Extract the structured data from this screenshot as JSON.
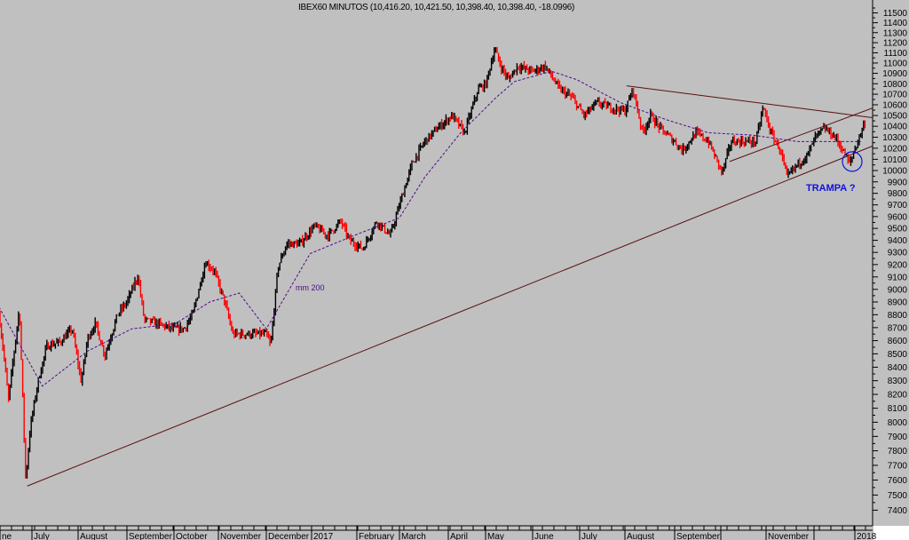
{
  "chart_data": {
    "type": "ohlc",
    "title": "IBEX60 MINUTOS (10,416.20, 10,421.50, 10,398.40, 10,398.40, -18.0996)",
    "y_scale": "log",
    "ylim": [
      7300,
      11600
    ],
    "y_ticks": [
      7400,
      7500,
      7600,
      7700,
      7800,
      7900,
      8000,
      8100,
      8200,
      8300,
      8400,
      8500,
      8600,
      8700,
      8800,
      8900,
      9000,
      9100,
      9200,
      9300,
      9400,
      9500,
      9600,
      9700,
      9800,
      9900,
      10000,
      10100,
      10200,
      10300,
      10400,
      10500,
      10600,
      10700,
      10800,
      10900,
      11000,
      11100,
      11200,
      11300,
      11400,
      11500
    ],
    "y_axis_side": "right",
    "x_tick_labels": [
      {
        "label": "ne",
        "date": "2016-06-01"
      },
      {
        "label": "July",
        "date": "2016-07-01"
      },
      {
        "label": "August",
        "date": "2016-08-01"
      },
      {
        "label": "September",
        "date": "2016-09-01"
      },
      {
        "label": "October",
        "date": "2016-10-01"
      },
      {
        "label": "November",
        "date": "2016-11-01"
      },
      {
        "label": "December",
        "date": "2016-12-01"
      },
      {
        "label": "2017",
        "date": "2017-01-01"
      },
      {
        "label": "February",
        "date": "2017-02-01"
      },
      {
        "label": "March",
        "date": "2017-03-01"
      },
      {
        "label": "April",
        "date": "2017-04-01"
      },
      {
        "label": "May",
        "date": "2017-05-01"
      },
      {
        "label": "June",
        "date": "2017-06-01"
      },
      {
        "label": "July",
        "date": "2017-07-01"
      },
      {
        "label": "August",
        "date": "2017-08-01"
      },
      {
        "label": "September",
        "date": "2017-09-01"
      },
      {
        "label": "",
        "date": "2017-10-01"
      },
      {
        "label": "November",
        "date": "2017-11-01"
      },
      {
        "label": "",
        "date": "2017-12-01"
      },
      {
        "label": "2018",
        "date": "2018-01-01"
      }
    ],
    "price": [
      [
        "2016-06-10",
        8800
      ],
      [
        "2016-06-13",
        8500
      ],
      [
        "2016-06-16",
        8160
      ],
      [
        "2016-06-23",
        8860
      ],
      [
        "2016-06-27",
        7600
      ],
      [
        "2016-06-30",
        7970
      ],
      [
        "2016-07-05",
        8290
      ],
      [
        "2016-07-11",
        8560
      ],
      [
        "2016-07-20",
        8590
      ],
      [
        "2016-07-28",
        8690
      ],
      [
        "2016-08-03",
        8290
      ],
      [
        "2016-08-07",
        8620
      ],
      [
        "2016-08-12",
        8730
      ],
      [
        "2016-08-18",
        8490
      ],
      [
        "2016-08-26",
        8800
      ],
      [
        "2016-09-01",
        8900
      ],
      [
        "2016-09-08",
        9110
      ],
      [
        "2016-09-12",
        8760
      ],
      [
        "2016-09-21",
        8730
      ],
      [
        "2016-09-30",
        8690
      ],
      [
        "2016-10-08",
        8690
      ],
      [
        "2016-10-14",
        8800
      ],
      [
        "2016-10-23",
        9220
      ],
      [
        "2016-10-29",
        9150
      ],
      [
        "2016-11-05",
        8900
      ],
      [
        "2016-11-10",
        8650
      ],
      [
        "2016-11-22",
        8650
      ],
      [
        "2016-12-01",
        8650
      ],
      [
        "2016-12-04",
        8560
      ],
      [
        "2016-12-09",
        9180
      ],
      [
        "2016-12-15",
        9370
      ],
      [
        "2016-12-24",
        9370
      ],
      [
        "2017-01-03",
        9520
      ],
      [
        "2017-01-12",
        9440
      ],
      [
        "2017-01-21",
        9560
      ],
      [
        "2017-01-27",
        9400
      ],
      [
        "2017-02-05",
        9330
      ],
      [
        "2017-02-14",
        9560
      ],
      [
        "2017-02-23",
        9440
      ],
      [
        "2017-03-01",
        9700
      ],
      [
        "2017-03-09",
        10060
      ],
      [
        "2017-03-17",
        10260
      ],
      [
        "2017-03-25",
        10380
      ],
      [
        "2017-04-04",
        10500
      ],
      [
        "2017-04-14",
        10340
      ],
      [
        "2017-04-25",
        10750
      ],
      [
        "2017-05-01",
        10790
      ],
      [
        "2017-05-07",
        11140
      ],
      [
        "2017-05-11",
        10970
      ],
      [
        "2017-05-16",
        10840
      ],
      [
        "2017-05-22",
        10970
      ],
      [
        "2017-06-01",
        10920
      ],
      [
        "2017-06-09",
        10970
      ],
      [
        "2017-06-18",
        10750
      ],
      [
        "2017-06-26",
        10670
      ],
      [
        "2017-07-04",
        10500
      ],
      [
        "2017-07-13",
        10620
      ],
      [
        "2017-07-21",
        10580
      ],
      [
        "2017-08-01",
        10540
      ],
      [
        "2017-08-06",
        10750
      ],
      [
        "2017-08-12",
        10340
      ],
      [
        "2017-08-17",
        10500
      ],
      [
        "2017-08-23",
        10380
      ],
      [
        "2017-09-01",
        10260
      ],
      [
        "2017-09-06",
        10180
      ],
      [
        "2017-09-15",
        10340
      ],
      [
        "2017-09-23",
        10260
      ],
      [
        "2017-10-02",
        9980
      ],
      [
        "2017-10-08",
        10260
      ],
      [
        "2017-10-16",
        10260
      ],
      [
        "2017-10-25",
        10260
      ],
      [
        "2017-10-30",
        10580
      ],
      [
        "2017-11-04",
        10340
      ],
      [
        "2017-11-10",
        10180
      ],
      [
        "2017-11-14",
        9940
      ],
      [
        "2017-11-21",
        10060
      ],
      [
        "2017-11-27",
        10140
      ],
      [
        "2017-12-02",
        10300
      ],
      [
        "2017-12-09",
        10380
      ],
      [
        "2017-12-17",
        10300
      ],
      [
        "2017-12-23",
        10180
      ],
      [
        "2017-12-28",
        10060
      ],
      [
        "2018-01-05",
        10340
      ],
      [
        "2018-01-08",
        10450
      ]
    ],
    "ma200": {
      "label": "mm 200",
      "points": [
        [
          "2016-06-10",
          8860
        ],
        [
          "2016-07-08",
          8260
        ],
        [
          "2016-08-07",
          8520
        ],
        [
          "2016-09-04",
          8690
        ],
        [
          "2016-10-02",
          8730
        ],
        [
          "2016-10-26",
          8900
        ],
        [
          "2016-11-14",
          8970
        ],
        [
          "2016-12-01",
          8690
        ],
        [
          "2016-12-31",
          9290
        ],
        [
          "2017-01-30",
          9440
        ],
        [
          "2017-03-01",
          9590
        ],
        [
          "2017-03-17",
          9940
        ],
        [
          "2017-04-11",
          10340
        ],
        [
          "2017-05-08",
          10670
        ],
        [
          "2017-05-20",
          10820
        ],
        [
          "2017-06-13",
          10920
        ],
        [
          "2017-06-29",
          10840
        ],
        [
          "2017-07-29",
          10620
        ],
        [
          "2017-08-27",
          10460
        ],
        [
          "2017-09-23",
          10340
        ],
        [
          "2017-10-22",
          10320
        ],
        [
          "2017-11-21",
          10260
        ],
        [
          "2017-12-20",
          10260
        ],
        [
          "2018-01-05",
          10260
        ]
      ]
    },
    "trendlines": [
      {
        "from": [
          "2016-06-28",
          7560
        ],
        "to": [
          "2018-01-10",
          10220
        ]
      },
      {
        "from": [
          "2017-10-07",
          10080
        ],
        "to": [
          "2018-01-10",
          10570
        ]
      },
      {
        "from": [
          "2017-08-02",
          10780
        ],
        "to": [
          "2018-01-10",
          10480
        ]
      }
    ],
    "annotations": [
      {
        "text": "TRAMPA ?",
        "date": "2017-11-26",
        "value": 9850
      },
      {
        "circle_at": [
          "2017-12-30",
          10080
        ]
      }
    ],
    "colors": {
      "background": "#c0c0c0",
      "bar_up": "#000000",
      "bar_down": "#ff0000",
      "ma": "#4b0a8a",
      "trendline": "#5a1010",
      "annotation": "#1010e0"
    }
  }
}
